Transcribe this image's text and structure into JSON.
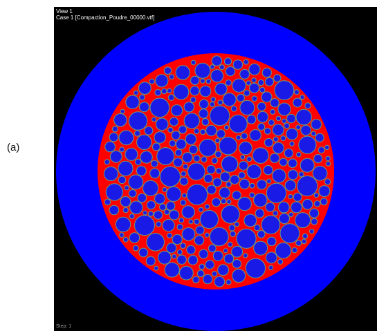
{
  "figure": {
    "label": "(a)"
  },
  "viewer": {
    "view_title": "View 1",
    "case_title": "Case 1  [Compaction_Poudre_00000.vtf]",
    "step_text": "Step: 1"
  },
  "colors": {
    "background": "#000000",
    "mold": "#0000ff",
    "pore_space": "#ff0000",
    "particle_fill": "#1a1ae6",
    "particle_outline": "#6b9a7a",
    "overlay_text": "#ffffff"
  }
}
